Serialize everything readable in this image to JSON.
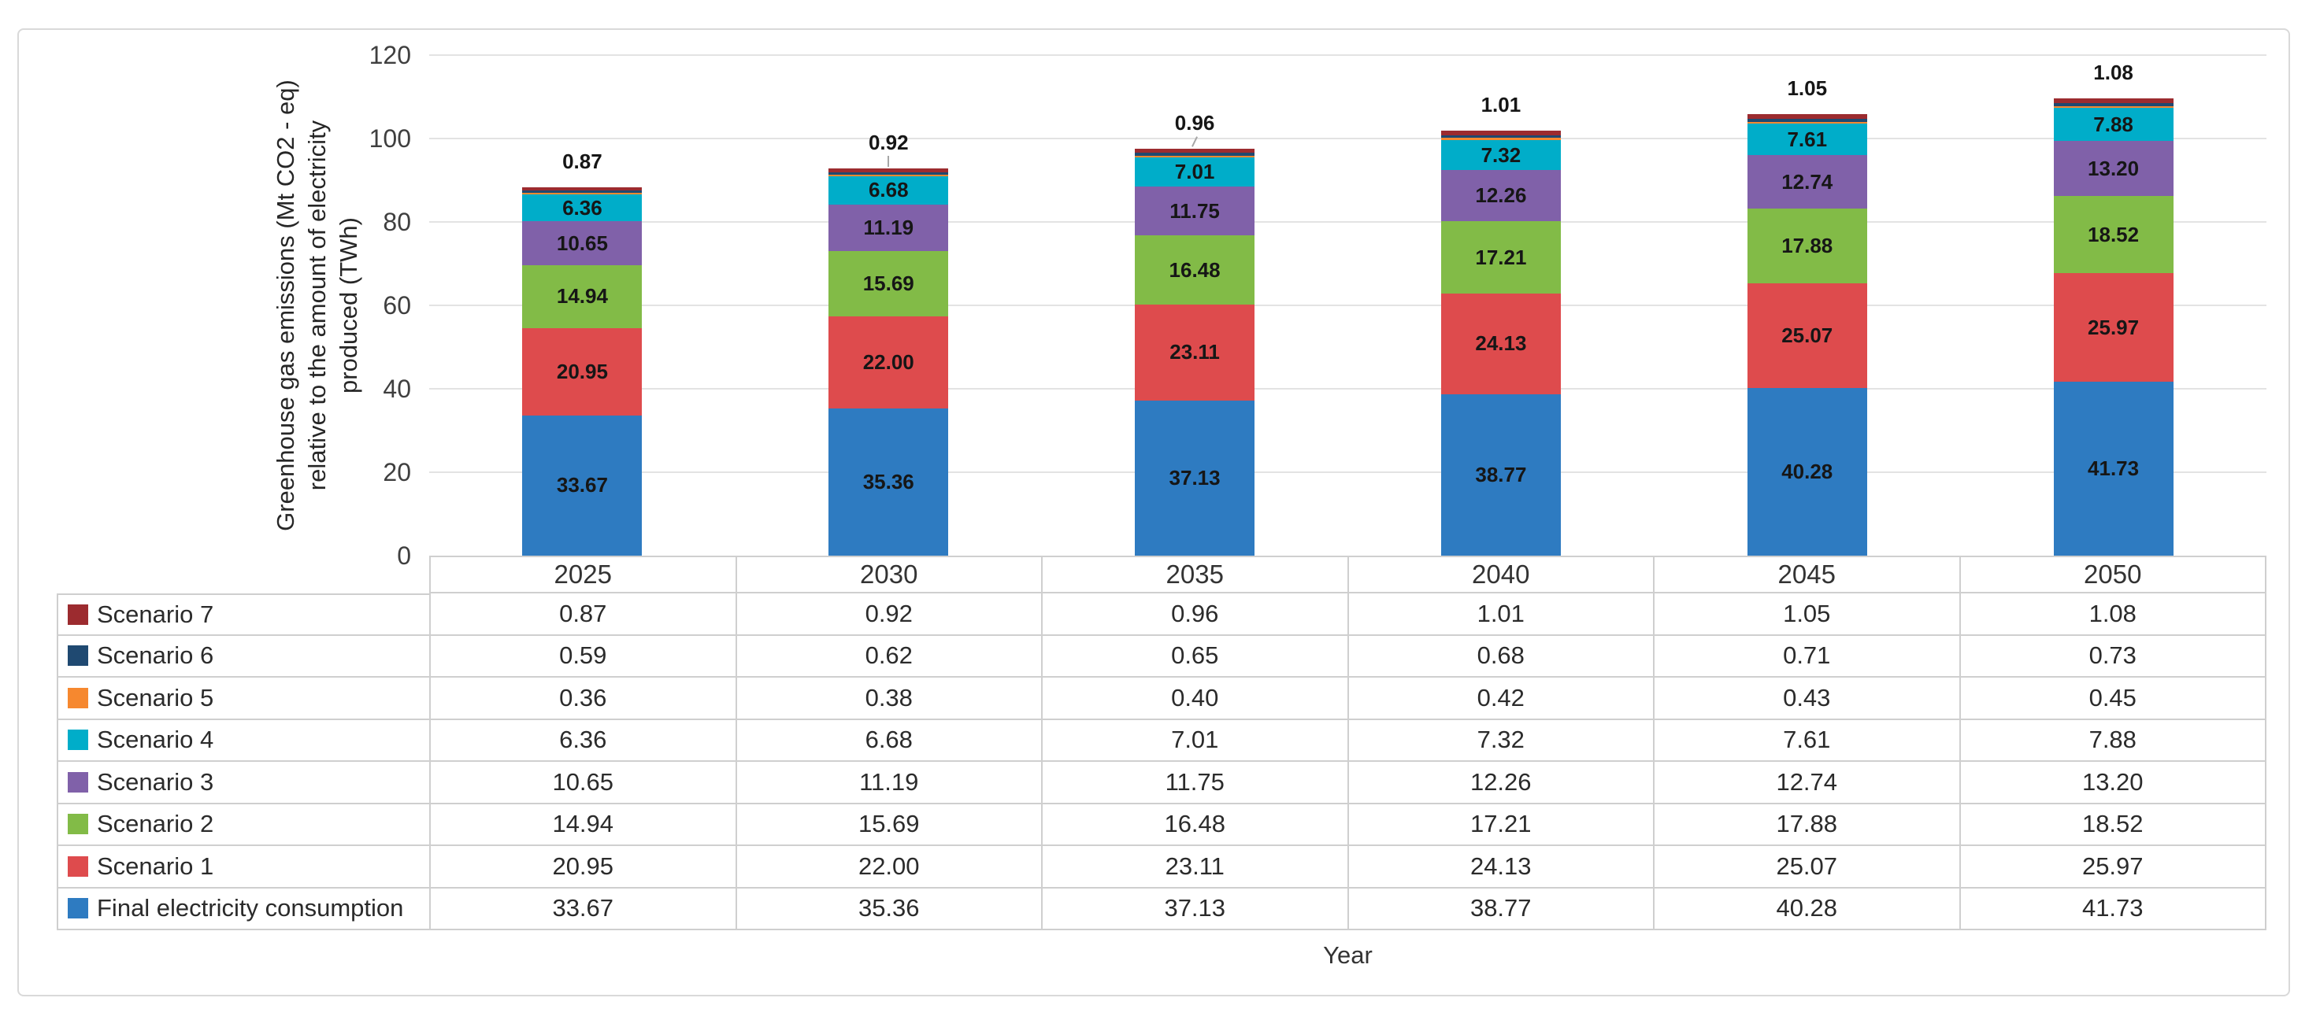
{
  "figure": {
    "y_axis": {
      "title_lines": [
        "Greenhouse gas emissions (Mt CO2 - eq)",
        "relative to the amount of electricity",
        "produced (TWh)"
      ],
      "ticks": [
        0,
        20,
        40,
        60,
        80,
        100,
        120
      ]
    },
    "x_axis": {
      "title": "Year"
    }
  },
  "chart_data": {
    "type": "bar",
    "stacked": true,
    "title": "",
    "categories": [
      "2025",
      "2030",
      "2035",
      "2040",
      "2045",
      "2050"
    ],
    "xlabel": "Year",
    "ylabel": "Greenhouse gas emissions (Mt CO2 - eq) relative to the amount of electricity produced (TWh)",
    "ylim": [
      0,
      120
    ],
    "ytick_step": 20,
    "grid": true,
    "value_format": "2-decimals",
    "legend_position": "table-left-column",
    "series": [
      {
        "name": "Final electricity consumption",
        "color": "#2e7bc1",
        "values": [
          33.67,
          35.36,
          37.13,
          38.77,
          40.28,
          41.73
        ],
        "labels_inside": true
      },
      {
        "name": "Scenario 1",
        "color": "#de4b4d",
        "values": [
          20.95,
          22.0,
          23.11,
          24.13,
          25.07,
          25.97
        ],
        "labels_inside": true
      },
      {
        "name": "Scenario 2",
        "color": "#82bb47",
        "values": [
          14.94,
          15.69,
          16.48,
          17.21,
          17.88,
          18.52
        ],
        "labels_inside": true
      },
      {
        "name": "Scenario 3",
        "color": "#8061a9",
        "values": [
          10.65,
          11.19,
          11.75,
          12.26,
          12.74,
          13.2
        ],
        "labels_inside": true
      },
      {
        "name": "Scenario 4",
        "color": "#00adc9",
        "values": [
          6.36,
          6.68,
          7.01,
          7.32,
          7.61,
          7.88
        ],
        "labels_inside": true
      },
      {
        "name": "Scenario 5",
        "color": "#f6882f",
        "values": [
          0.36,
          0.38,
          0.4,
          0.42,
          0.43,
          0.45
        ],
        "labels_inside": false
      },
      {
        "name": "Scenario 6",
        "color": "#1f4971",
        "values": [
          0.59,
          0.62,
          0.65,
          0.68,
          0.71,
          0.73
        ],
        "labels_inside": false
      },
      {
        "name": "Scenario 7",
        "color": "#9c2b2f",
        "values": [
          0.87,
          0.92,
          0.96,
          1.01,
          1.05,
          1.08
        ],
        "labels_inside": false
      }
    ],
    "callouts": {
      "series": "Scenario 7",
      "values": [
        0.87,
        0.92,
        0.96,
        1.01,
        1.05,
        1.08
      ],
      "categories_with_leader_lines": [
        "2030",
        "2035"
      ]
    }
  },
  "table": {
    "header_row": [
      "2025",
      "2030",
      "2035",
      "2040",
      "2045",
      "2050"
    ],
    "rows_top_to_bottom": [
      "Scenario 7",
      "Scenario 6",
      "Scenario 5",
      "Scenario 4",
      "Scenario 3",
      "Scenario 2",
      "Scenario 1",
      "Final electricity consumption"
    ]
  }
}
